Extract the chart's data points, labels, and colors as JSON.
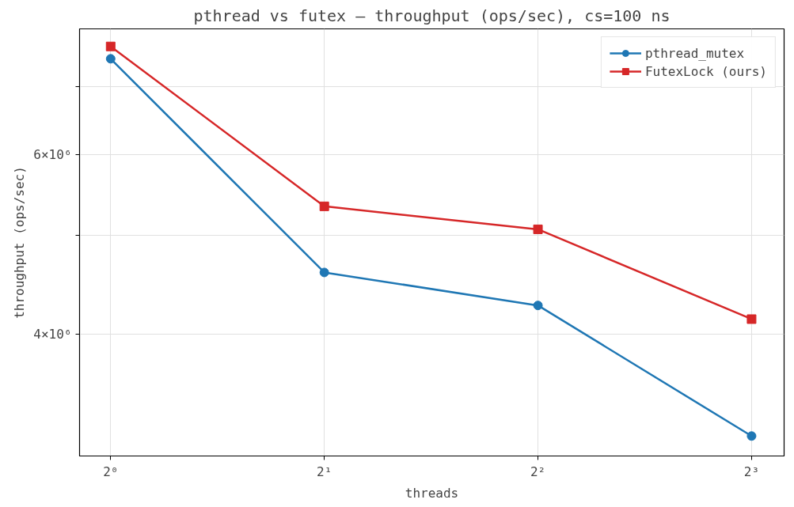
{
  "chart_data": {
    "type": "line",
    "title": "pthread vs futex — throughput (ops/sec), cs=100 ns",
    "xlabel": "threads",
    "ylabel": "throughput (ops/sec)",
    "x": [
      1,
      2,
      4,
      8
    ],
    "series": [
      {
        "name": "pthread_mutex",
        "color": "#1f77b4",
        "marker": "circle",
        "values": [
          7450000,
          4600000,
          4270000,
          3180000
        ]
      },
      {
        "name": "FutexLock (ours)",
        "color": "#d62728",
        "marker": "square",
        "values": [
          7660000,
          5340000,
          5070000,
          4140000
        ]
      }
    ],
    "log": "xy",
    "xlim": [
      0.904,
      8.89
    ],
    "ylim": [
      3040000,
      7970000
    ],
    "xticks": [
      {
        "value": 1,
        "label": "2⁰"
      },
      {
        "value": 2,
        "label": "2¹"
      },
      {
        "value": 4,
        "label": "2²"
      },
      {
        "value": 8,
        "label": "2³"
      }
    ],
    "yticks": [
      {
        "value": 4000000,
        "label": "4×10⁶"
      },
      {
        "value": 5000000,
        "label": null
      },
      {
        "value": 6000000,
        "label": "6×10⁶"
      },
      {
        "value": 7000000,
        "label": null
      }
    ],
    "grid": true,
    "legend": "top right",
    "line_style": "solid"
  }
}
